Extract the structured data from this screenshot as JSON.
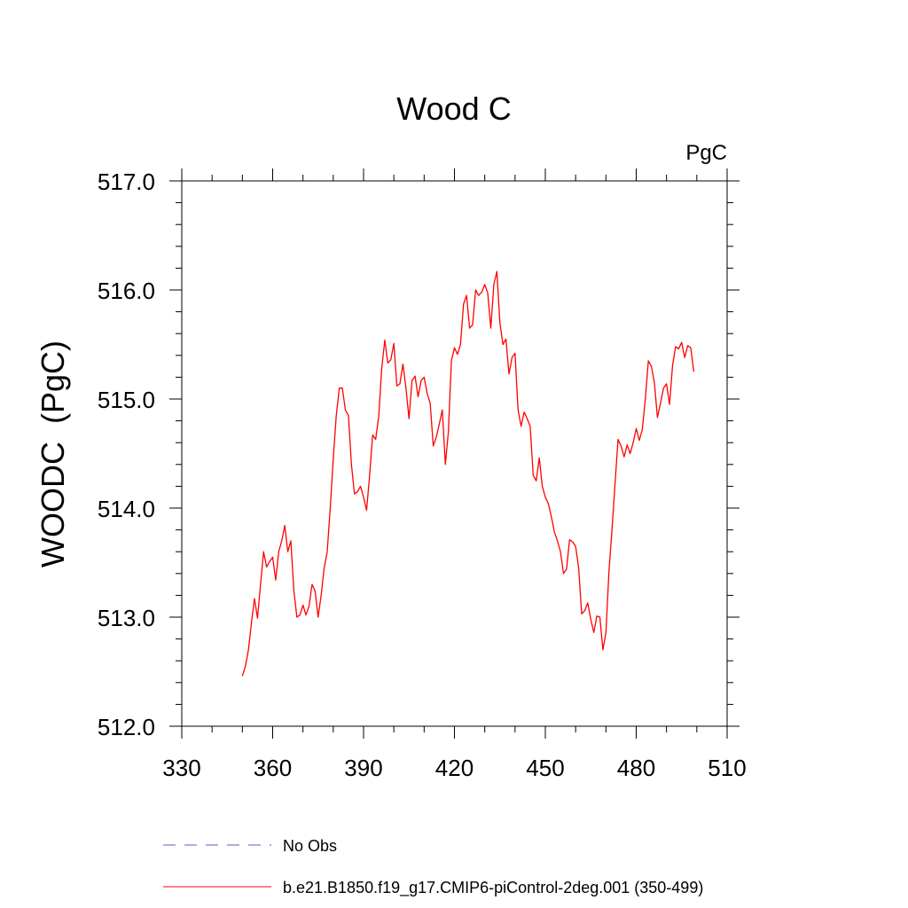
{
  "chart_data": {
    "type": "line",
    "title": "Wood C",
    "units_label": "PgC",
    "ylabel": "WOODC  (PgC)",
    "xlabel": "",
    "xlim": [
      330,
      510
    ],
    "ylim": [
      512.0,
      517.0
    ],
    "x_ticks": [
      330,
      360,
      390,
      420,
      450,
      480,
      510
    ],
    "x_tick_labels": [
      "330",
      "360",
      "390",
      "420",
      "450",
      "480",
      "510"
    ],
    "y_ticks": [
      512.0,
      513.0,
      514.0,
      515.0,
      516.0,
      517.0
    ],
    "y_tick_labels": [
      "512.0",
      "513.0",
      "514.0",
      "515.0",
      "516.0",
      "517.0"
    ],
    "grid": false,
    "legend_position": "bottom",
    "legend": [
      {
        "label": "No Obs",
        "color": "#5a5acd",
        "dash": "dashed"
      },
      {
        "label": "b.e21.B1850.f19_g17.CMIP6-piControl-2deg.001 (350-499)",
        "color": "#ff0000",
        "dash": "solid"
      }
    ],
    "series": [
      {
        "name": "b.e21.B1850.f19_g17.CMIP6-piControl-2deg.001 (350-499)",
        "color": "#ff0000",
        "x": [
          350,
          351,
          352,
          353,
          354,
          355,
          356,
          357,
          358,
          359,
          360,
          361,
          362,
          363,
          364,
          365,
          366,
          367,
          368,
          369,
          370,
          371,
          372,
          373,
          374,
          375,
          376,
          377,
          378,
          379,
          380,
          381,
          382,
          383,
          384,
          385,
          386,
          387,
          388,
          389,
          390,
          391,
          392,
          393,
          394,
          395,
          396,
          397,
          398,
          399,
          400,
          401,
          402,
          403,
          404,
          405,
          406,
          407,
          408,
          409,
          410,
          411,
          412,
          413,
          414,
          415,
          416,
          417,
          418,
          419,
          420,
          421,
          422,
          423,
          424,
          425,
          426,
          427,
          428,
          429,
          430,
          431,
          432,
          433,
          434,
          435,
          436,
          437,
          438,
          439,
          440,
          441,
          442,
          443,
          444,
          445,
          446,
          447,
          448,
          449,
          450,
          451,
          452,
          453,
          454,
          455,
          456,
          457,
          458,
          459,
          460,
          461,
          462,
          463,
          464,
          465,
          466,
          467,
          468,
          469,
          470,
          471,
          472,
          473,
          474,
          475,
          476,
          477,
          478,
          479,
          480,
          481,
          482,
          483,
          484,
          485,
          486,
          487,
          488,
          489,
          490,
          491,
          492,
          493,
          494,
          495,
          496,
          497,
          498,
          499
        ],
        "values": [
          512.46,
          512.55,
          512.7,
          512.95,
          513.17,
          512.99,
          513.3,
          513.6,
          513.46,
          513.51,
          513.55,
          513.34,
          513.6,
          513.7,
          513.84,
          513.6,
          513.7,
          513.24,
          513.0,
          513.02,
          513.11,
          513.02,
          513.1,
          513.3,
          513.24,
          513.0,
          513.2,
          513.45,
          513.6,
          514.0,
          514.45,
          514.85,
          515.1,
          515.1,
          514.9,
          514.85,
          514.4,
          514.13,
          514.15,
          514.2,
          514.1,
          513.98,
          514.3,
          514.67,
          514.63,
          514.84,
          515.28,
          515.54,
          515.33,
          515.36,
          515.51,
          515.12,
          515.14,
          515.32,
          515.1,
          514.82,
          515.17,
          515.21,
          515.02,
          515.17,
          515.2,
          515.05,
          514.96,
          514.57,
          514.65,
          514.77,
          514.9,
          514.4,
          514.7,
          515.35,
          515.47,
          515.41,
          515.5,
          515.87,
          515.95,
          515.65,
          515.68,
          516.0,
          515.95,
          515.98,
          516.05,
          515.97,
          515.65,
          516.05,
          516.17,
          515.7,
          515.5,
          515.55,
          515.23,
          515.38,
          515.42,
          514.9,
          514.75,
          514.88,
          514.82,
          514.75,
          514.3,
          514.25,
          514.46,
          514.2,
          514.1,
          514.04,
          513.92,
          513.78,
          513.7,
          513.6,
          513.4,
          513.44,
          513.71,
          513.69,
          513.65,
          513.45,
          513.03,
          513.06,
          513.13,
          512.98,
          512.86,
          513.01,
          513.0,
          512.7,
          512.86,
          513.42,
          513.8,
          514.22,
          514.63,
          514.57,
          514.47,
          514.58,
          514.5,
          514.6,
          514.73,
          514.62,
          514.72,
          515.0,
          515.35,
          515.3,
          515.15,
          514.83,
          514.96,
          515.1,
          515.14,
          514.95,
          515.31,
          515.48,
          515.46,
          515.52,
          515.38,
          515.49,
          515.47,
          515.25
        ]
      }
    ]
  }
}
